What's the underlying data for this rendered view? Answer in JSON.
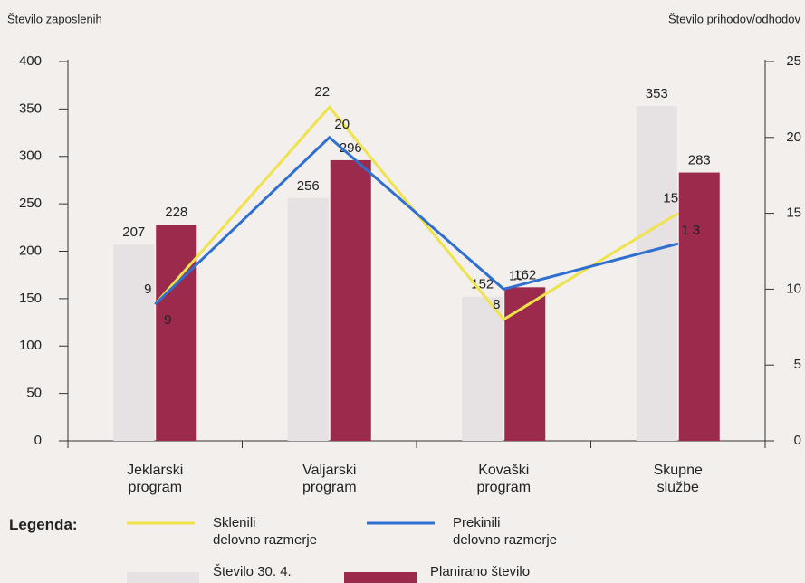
{
  "chart_data": {
    "type": "bar_line",
    "y_label": "Število zaposlenih",
    "y2_label": "Število prihodov/odhodov",
    "categories": [
      "Jeklarski\nprogram",
      "Valjarski\nprogram",
      "Kovaški\nprogram",
      "Skupne\nslužbe"
    ],
    "ylim": [
      0,
      400
    ],
    "yticks": [
      0,
      50,
      100,
      150,
      200,
      250,
      300,
      350,
      400
    ],
    "y2lim": [
      0,
      25
    ],
    "y2ticks": [
      0,
      5,
      10,
      15,
      20,
      25
    ],
    "legend_title": "Legenda:",
    "series": [
      {
        "name": "Število 30. 4.",
        "kind": "bar",
        "color": "#e6e1e3",
        "values": [
          207,
          256,
          152,
          353
        ]
      },
      {
        "name": "Planirano število",
        "kind": "bar",
        "color": "#9b2a4d",
        "values": [
          228,
          296,
          162,
          283
        ]
      },
      {
        "name": "Sklenili\ndelovno razmerje",
        "kind": "line",
        "axis": "y2",
        "color": "#f0e24a",
        "values": [
          9,
          22,
          8,
          15
        ]
      },
      {
        "name": "Prekinili\ndelovno razmerje",
        "kind": "line",
        "axis": "y2",
        "color": "#2f6fcf",
        "values": [
          9,
          20,
          10,
          13
        ],
        "value_labels": [
          "9",
          "20",
          "10",
          "1 3"
        ]
      }
    ]
  }
}
